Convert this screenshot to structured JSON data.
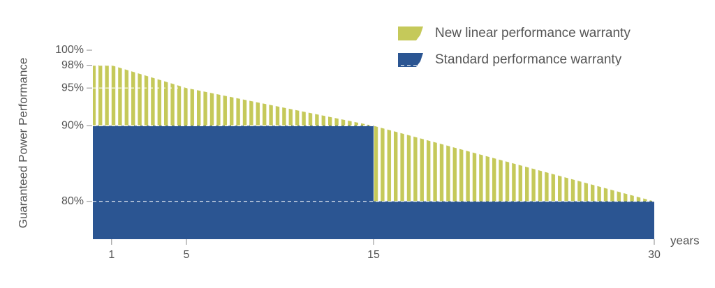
{
  "chart_data": {
    "type": "area",
    "ylabel": "Guaranteed Power Performance",
    "xlabel": "years",
    "x": [
      0,
      1,
      5,
      15,
      30
    ],
    "xlim": [
      0,
      30
    ],
    "xticks": [
      1,
      5,
      15,
      30
    ],
    "ylim": [
      75,
      100
    ],
    "yticks": [
      {
        "value": 100,
        "label": "100%"
      },
      {
        "value": 98,
        "label": "98%"
      },
      {
        "value": 95,
        "label": "95%"
      },
      {
        "value": 90,
        "label": "90%"
      },
      {
        "value": 80,
        "label": "80%"
      }
    ],
    "series": [
      {
        "name": "New linear performance warranty",
        "color": "#c5c95a",
        "style": "striped",
        "values": [
          98,
          98,
          95,
          90,
          80
        ]
      },
      {
        "name": "Standard performance warranty",
        "color": "#2b5592",
        "style": "step",
        "values": [
          90,
          90,
          90,
          80,
          80
        ]
      }
    ]
  }
}
